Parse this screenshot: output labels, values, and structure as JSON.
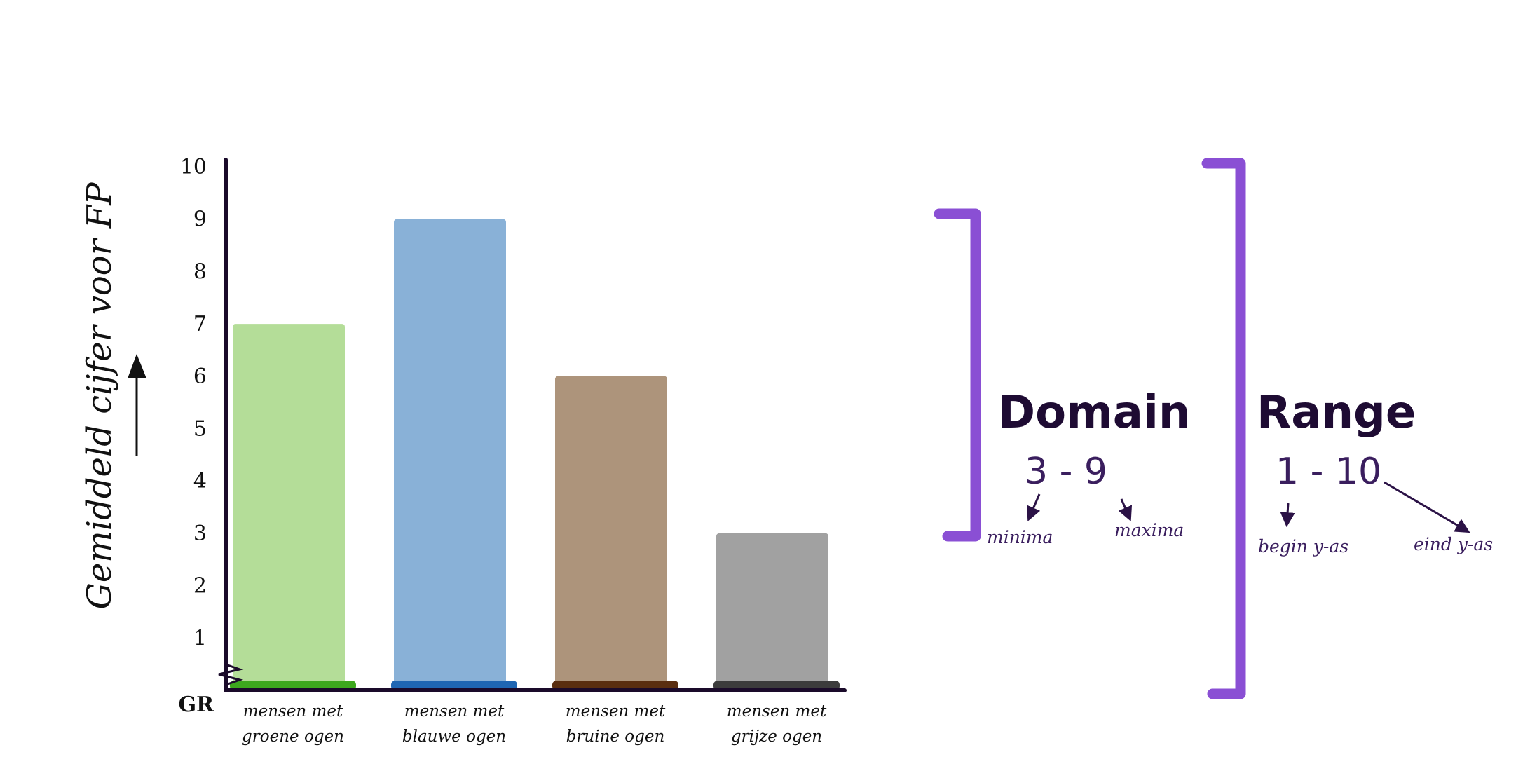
{
  "chart_data": {
    "type": "bar",
    "categories": [
      [
        "mensen met",
        "groene ogen"
      ],
      [
        "mensen met",
        "blauwe ogen"
      ],
      [
        "mensen met",
        "bruine ogen"
      ],
      [
        "mensen met",
        "grijze ogen"
      ]
    ],
    "values": [
      7,
      9,
      6,
      3
    ],
    "bar_colors": [
      "#b4dd98",
      "#89b1d7",
      "#ad947b",
      "#a1a1a1"
    ],
    "base_colors": [
      "#3da81e",
      "#1f66b3",
      "#5a2e10",
      "#3c3c3c"
    ],
    "ylabel": "Gemiddeld cijfer voor FP",
    "x_origin_label": "GR",
    "ylim": [
      0,
      10
    ],
    "yticks": [
      1,
      2,
      3,
      4,
      5,
      6,
      7,
      8,
      9,
      10
    ]
  },
  "annotations": {
    "domain": {
      "title": "Domain",
      "range_text": "3 - 9",
      "min_label": "minima",
      "max_label": "maxima"
    },
    "range": {
      "title": "Range",
      "range_text": "1 - 10",
      "start_label": "begin y-as",
      "end_label": "eind y-as"
    },
    "accent_color": "#8a4fd4"
  }
}
